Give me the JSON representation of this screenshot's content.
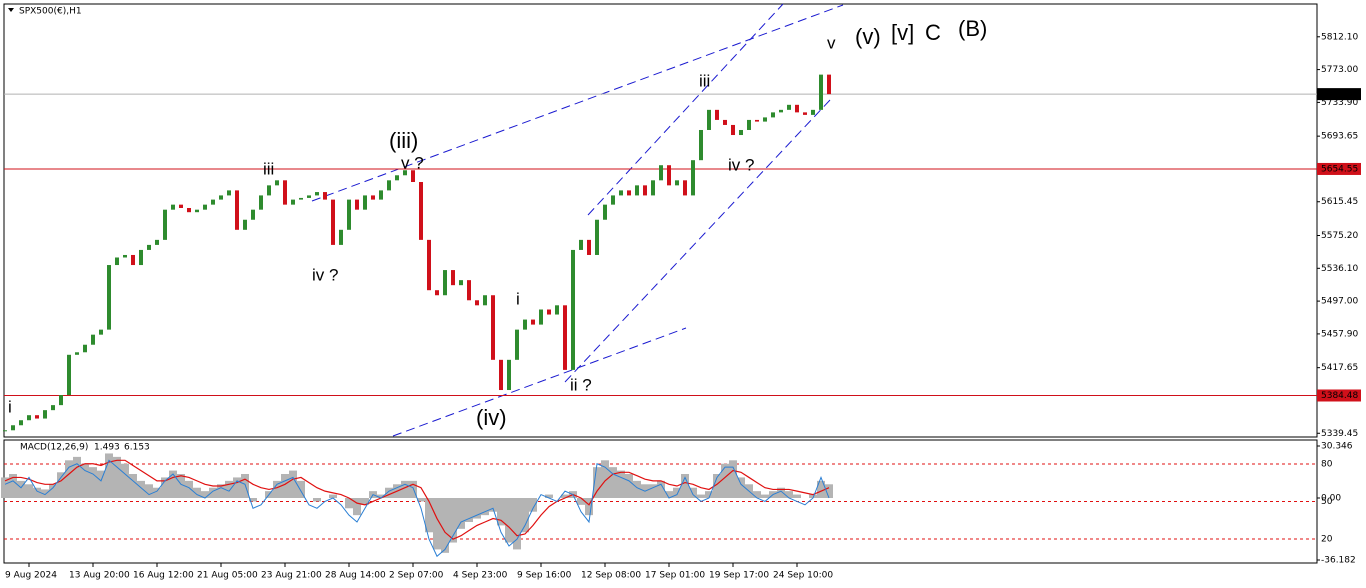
{
  "chart_data": [
    {
      "type": "line",
      "title": "SPX500(€),H1",
      "up_color": "#2e8b2e",
      "down_color": "#d0101a",
      "categories": [
        null,
        null,
        null,
        "9 Aug 2024",
        null,
        null,
        null,
        null,
        null,
        null,
        null,
        "13 Aug 20:00",
        null,
        null,
        null,
        null,
        null,
        null,
        null,
        "16 Aug 12:00",
        null,
        null,
        null,
        null,
        null,
        null,
        null,
        "21 Aug 05:00",
        null,
        null,
        null,
        null,
        null,
        null,
        null,
        "23 Aug 21:00",
        null,
        null,
        null,
        null,
        null,
        null,
        null,
        "28 Aug 14:00",
        null,
        null,
        null,
        null,
        null,
        null,
        null,
        "2 Sep 07:00",
        null,
        null,
        null,
        null,
        null,
        null,
        null,
        "4 Sep 23:00",
        null,
        null,
        null,
        null,
        null,
        null,
        null,
        "9 Sep 16:00",
        null,
        null,
        null,
        null,
        null,
        null,
        null,
        "12 Sep 08:00",
        null,
        null,
        null,
        null,
        null,
        null,
        null,
        "17 Sep 01:00",
        null,
        null,
        null,
        null,
        null,
        null,
        null,
        "19 Sep 17:00",
        null,
        null,
        null,
        null,
        null,
        null,
        null,
        "24 Sep 10:00",
        null,
        null,
        null,
        null
      ],
      "values": [
        5343,
        5349,
        5355,
        5361,
        5357,
        5367,
        5373,
        5385,
        5433,
        5436,
        5445,
        5457,
        5463,
        5540,
        5549,
        5552,
        5540,
        5558,
        5564,
        5570,
        5606,
        5612,
        5608,
        5603,
        5606,
        5612,
        5618,
        5623,
        5629,
        5582,
        5594,
        5606,
        5623,
        5635,
        5641,
        5612,
        5618,
        5620,
        5623,
        5627,
        5618,
        5564,
        5582,
        5618,
        5606,
        5623,
        5618,
        5629,
        5641,
        5647,
        5653,
        5639,
        5570,
        5510,
        5504,
        5534,
        5516,
        5522,
        5498,
        5492,
        5504,
        5427,
        5391,
        5427,
        5463,
        5475,
        5469,
        5487,
        5481,
        5492,
        5415,
        5558,
        5570,
        5552,
        5594,
        5612,
        5623,
        5629,
        5623,
        5635,
        5623,
        5641,
        5659,
        5635,
        5641,
        5623,
        5665,
        5701,
        5725,
        5713,
        5707,
        5695,
        5701,
        5713,
        5711,
        5716,
        5722,
        5725,
        5731,
        5722,
        5719,
        5725,
        5767,
        5743.76
      ],
      "ylim": [
        5335,
        5850
      ],
      "yticks": [
        {
          "value": 5812.1,
          "label": "5812.10"
        },
        {
          "value": 5773,
          "label": "5773.00"
        },
        {
          "value": 5733.9,
          "label": "5733.90"
        },
        5693.65,
        5615.45,
        {
          "value": 5575.2,
          "label": "5575.20"
        },
        {
          "value": 5536.1,
          "label": "5536.10"
        },
        {
          "value": 5497,
          "label": "5497.00"
        },
        {
          "value": 5457.9,
          "label": "5457.90"
        },
        5417.65,
        5339.45
      ],
      "last": 5743.76,
      "levels": [
        5654.55,
        5384.48
      ],
      "level_color": "#d0101a",
      "annotations": [
        "i",
        "iii",
        "iv ?",
        "(iii)",
        "v ?",
        "(iv)",
        "i",
        "ii ?",
        "iii",
        "iv ?",
        "v",
        "(v)",
        "[v]",
        "C",
        "(B)"
      ]
    },
    {
      "type": "macd",
      "title": "MACD(12,26,9)",
      "current": [
        1.493,
        6.153
      ],
      "series": [
        {
          "color": "#b4b4b4",
          "values": [
            12,
            14,
            10,
            8,
            6,
            5,
            8,
            15,
            22,
            24,
            20,
            18,
            16,
            26,
            24,
            20,
            14,
            10,
            8,
            6,
            12,
            16,
            14,
            10,
            6,
            4,
            6,
            8,
            10,
            12,
            14,
            -2,
            0,
            4,
            10,
            14,
            16,
            10,
            0,
            -2,
            0,
            2,
            0,
            -6,
            -10,
            -4,
            4,
            2,
            6,
            8,
            10,
            10,
            -2,
            -20,
            -30,
            -32,
            -26,
            -18,
            -14,
            -12,
            -10,
            -8,
            -16,
            -26,
            -30,
            -20,
            -8,
            0,
            2,
            0,
            2,
            4,
            -4,
            -10,
            18,
            22,
            18,
            16,
            14,
            10,
            8,
            8,
            10,
            4,
            6,
            14,
            6,
            2,
            4,
            14,
            20,
            22,
            12,
            8,
            4,
            2,
            4,
            6,
            4,
            2,
            0,
            2,
            10,
            8
          ]
        },
        {
          "color": "#e01010",
          "values": [
            10,
            12,
            12,
            11,
            9,
            8,
            8,
            10,
            14,
            18,
            20,
            20,
            19,
            21,
            22,
            22,
            19,
            16,
            13,
            10,
            10,
            12,
            13,
            12,
            10,
            8,
            7,
            7,
            8,
            9,
            11,
            8,
            6,
            5,
            6,
            8,
            11,
            12,
            9,
            6,
            4,
            3,
            2,
            0,
            -3,
            -4,
            -2,
            0,
            2,
            4,
            6,
            8,
            6,
            -2,
            -12,
            -20,
            -24,
            -22,
            -19,
            -16,
            -14,
            -12,
            -13,
            -17,
            -22,
            -21,
            -16,
            -10,
            -5,
            -2,
            0,
            2,
            0,
            -4,
            4,
            10,
            14,
            15,
            15,
            13,
            11,
            10,
            10,
            8,
            7,
            9,
            8,
            6,
            5,
            8,
            12,
            16,
            15,
            12,
            9,
            6,
            5,
            5,
            5,
            4,
            3,
            2,
            4,
            6
          ]
        },
        {
          "color": "#2a7fd4",
          "values": [
            8,
            10,
            6,
            12,
            4,
            2,
            6,
            12,
            18,
            20,
            16,
            14,
            10,
            22,
            18,
            14,
            10,
            6,
            2,
            4,
            10,
            14,
            8,
            6,
            2,
            0,
            4,
            6,
            4,
            10,
            8,
            -6,
            -4,
            2,
            8,
            10,
            12,
            4,
            -4,
            -6,
            -2,
            0,
            -4,
            -10,
            -14,
            -6,
            2,
            0,
            4,
            6,
            8,
            6,
            -6,
            -24,
            -34,
            -30,
            -22,
            -14,
            -12,
            -10,
            -8,
            -6,
            -20,
            -28,
            -24,
            -16,
            -6,
            2,
            0,
            -2,
            4,
            2,
            -8,
            -14,
            20,
            18,
            14,
            12,
            10,
            6,
            4,
            6,
            8,
            0,
            2,
            12,
            2,
            -2,
            0,
            12,
            18,
            18,
            8,
            4,
            0,
            -2,
            2,
            4,
            0,
            -2,
            -4,
            0,
            12,
            0
          ]
        }
      ],
      "ylim": [
        -37.35,
        33.85
      ],
      "yticks": [
        30.346,
        {
          "value": 0,
          "label": "0.00"
        },
        -36.182
      ],
      "y2lim": [
        1.6,
        99.2
      ],
      "y2ticks": [
        80,
        50,
        20
      ]
    }
  ]
}
